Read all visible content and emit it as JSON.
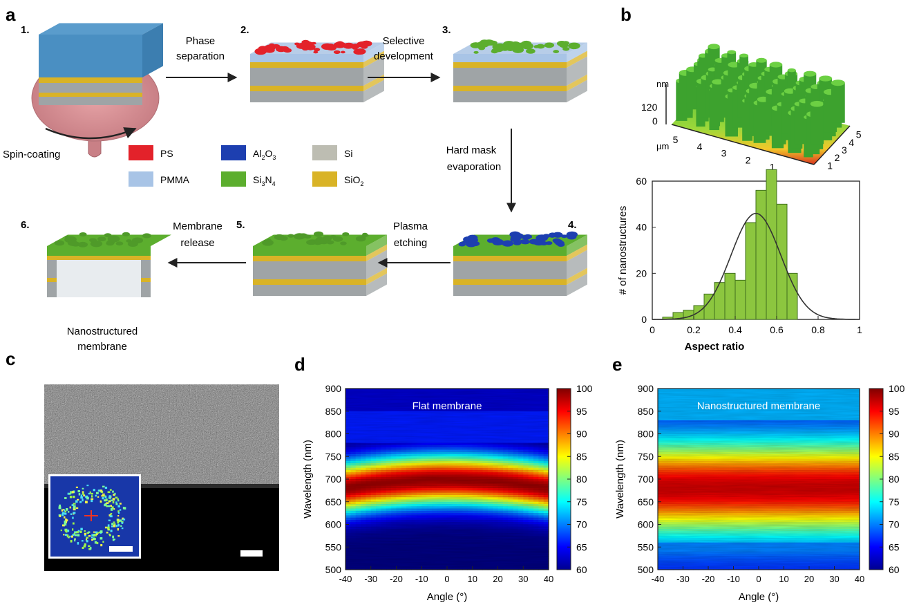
{
  "panels": {
    "a": "a",
    "b": "b",
    "c": "c",
    "d": "d",
    "e": "e"
  },
  "panel_a": {
    "steps": [
      "1.",
      "2.",
      "3.",
      "4.",
      "5.",
      "6."
    ],
    "arrows": {
      "phase_1": "Phase",
      "phase_2": "separation",
      "selective_1": "Selective",
      "selective_2": "development",
      "hardmask_1": "Hard mask",
      "hardmask_2": "evaporation",
      "plasma_1": "Plasma",
      "plasma_2": "etching",
      "release_1": "Membrane",
      "release_2": "release"
    },
    "spin_coating": "Spin-coating",
    "nanostructured_1": "Nanostructured",
    "nanostructured_2": "membrane",
    "legend": [
      {
        "label": "PS",
        "color": "#e3222a"
      },
      {
        "label": "Al",
        "sub1": "2",
        "mid": "O",
        "sub2": "3",
        "color": "#1d3fb0"
      },
      {
        "label": "Si",
        "color": "#bdbdb2"
      },
      {
        "label": "PMMA",
        "color": "#a8c4e6"
      },
      {
        "label": "Si",
        "sub1": "3",
        "mid": "N",
        "sub2": "4",
        "color": "#5cae2e"
      },
      {
        "label": "SiO",
        "sub1": "2",
        "color": "#d9b326"
      }
    ]
  },
  "panel_b_3d": {
    "unit_z": "nm",
    "z_ticks": [
      "120",
      "0"
    ],
    "unit_xy": "µm",
    "left_ticks": [
      "5",
      "4",
      "3",
      "2",
      "1"
    ],
    "right_ticks": [
      "5",
      "4",
      "3",
      "2",
      "1"
    ]
  },
  "chart_data": [
    {
      "type": "bar",
      "xlabel": "Aspect ratio",
      "ylabel": "# of nanostructures",
      "xlim": [
        0,
        1
      ],
      "ylim": [
        0,
        60
      ],
      "x_ticks": [
        "0",
        "0.2",
        "0.4",
        "0.6",
        "0.8",
        "1"
      ],
      "y_ticks": [
        "0",
        "20",
        "40",
        "60"
      ],
      "bin_width": 0.05,
      "bin_starts": [
        0.05,
        0.1,
        0.15,
        0.2,
        0.25,
        0.3,
        0.35,
        0.4,
        0.45,
        0.5,
        0.55,
        0.6,
        0.65
      ],
      "values": [
        1,
        3,
        4,
        6,
        11,
        16,
        20,
        17,
        42,
        56,
        65,
        50,
        20
      ],
      "fit_curve": {
        "type": "gaussian",
        "mean": 0.5,
        "sigma": 0.12,
        "peak": 46
      }
    },
    {
      "type": "heatmap",
      "title": "Flat membrane",
      "xlabel": "Angle (°)",
      "ylabel": "Wavelength (nm)",
      "xlim": [
        -40,
        40
      ],
      "ylim": [
        500,
        900
      ],
      "x_ticks": [
        "-40",
        "-30",
        "-20",
        "-10",
        "0",
        "10",
        "20",
        "30",
        "40"
      ],
      "y_ticks": [
        "500",
        "550",
        "600",
        "650",
        "700",
        "750",
        "800",
        "850",
        "900"
      ],
      "colorbar": {
        "min": 60,
        "max": 100,
        "ticks": [
          "60",
          "65",
          "70",
          "75",
          "80",
          "85",
          "90",
          "95",
          "100"
        ]
      },
      "peak_wavelength": 690,
      "peak_value": 99
    },
    {
      "type": "heatmap",
      "title": "Nanostructured membrane",
      "xlabel": "Angle (°)",
      "ylabel": "Wavelength (nm)",
      "xlim": [
        -40,
        40
      ],
      "ylim": [
        500,
        900
      ],
      "x_ticks": [
        "-40",
        "-30",
        "-20",
        "-10",
        "0",
        "10",
        "20",
        "30",
        "40"
      ],
      "y_ticks": [
        "500",
        "550",
        "600",
        "650",
        "700",
        "750",
        "800",
        "850",
        "900"
      ],
      "colorbar": {
        "min": 60,
        "max": 100,
        "ticks": [
          "60",
          "65",
          "70",
          "75",
          "80",
          "85",
          "90",
          "95",
          "100"
        ]
      },
      "peak_wavelength": 680,
      "peak_value": 97
    }
  ]
}
